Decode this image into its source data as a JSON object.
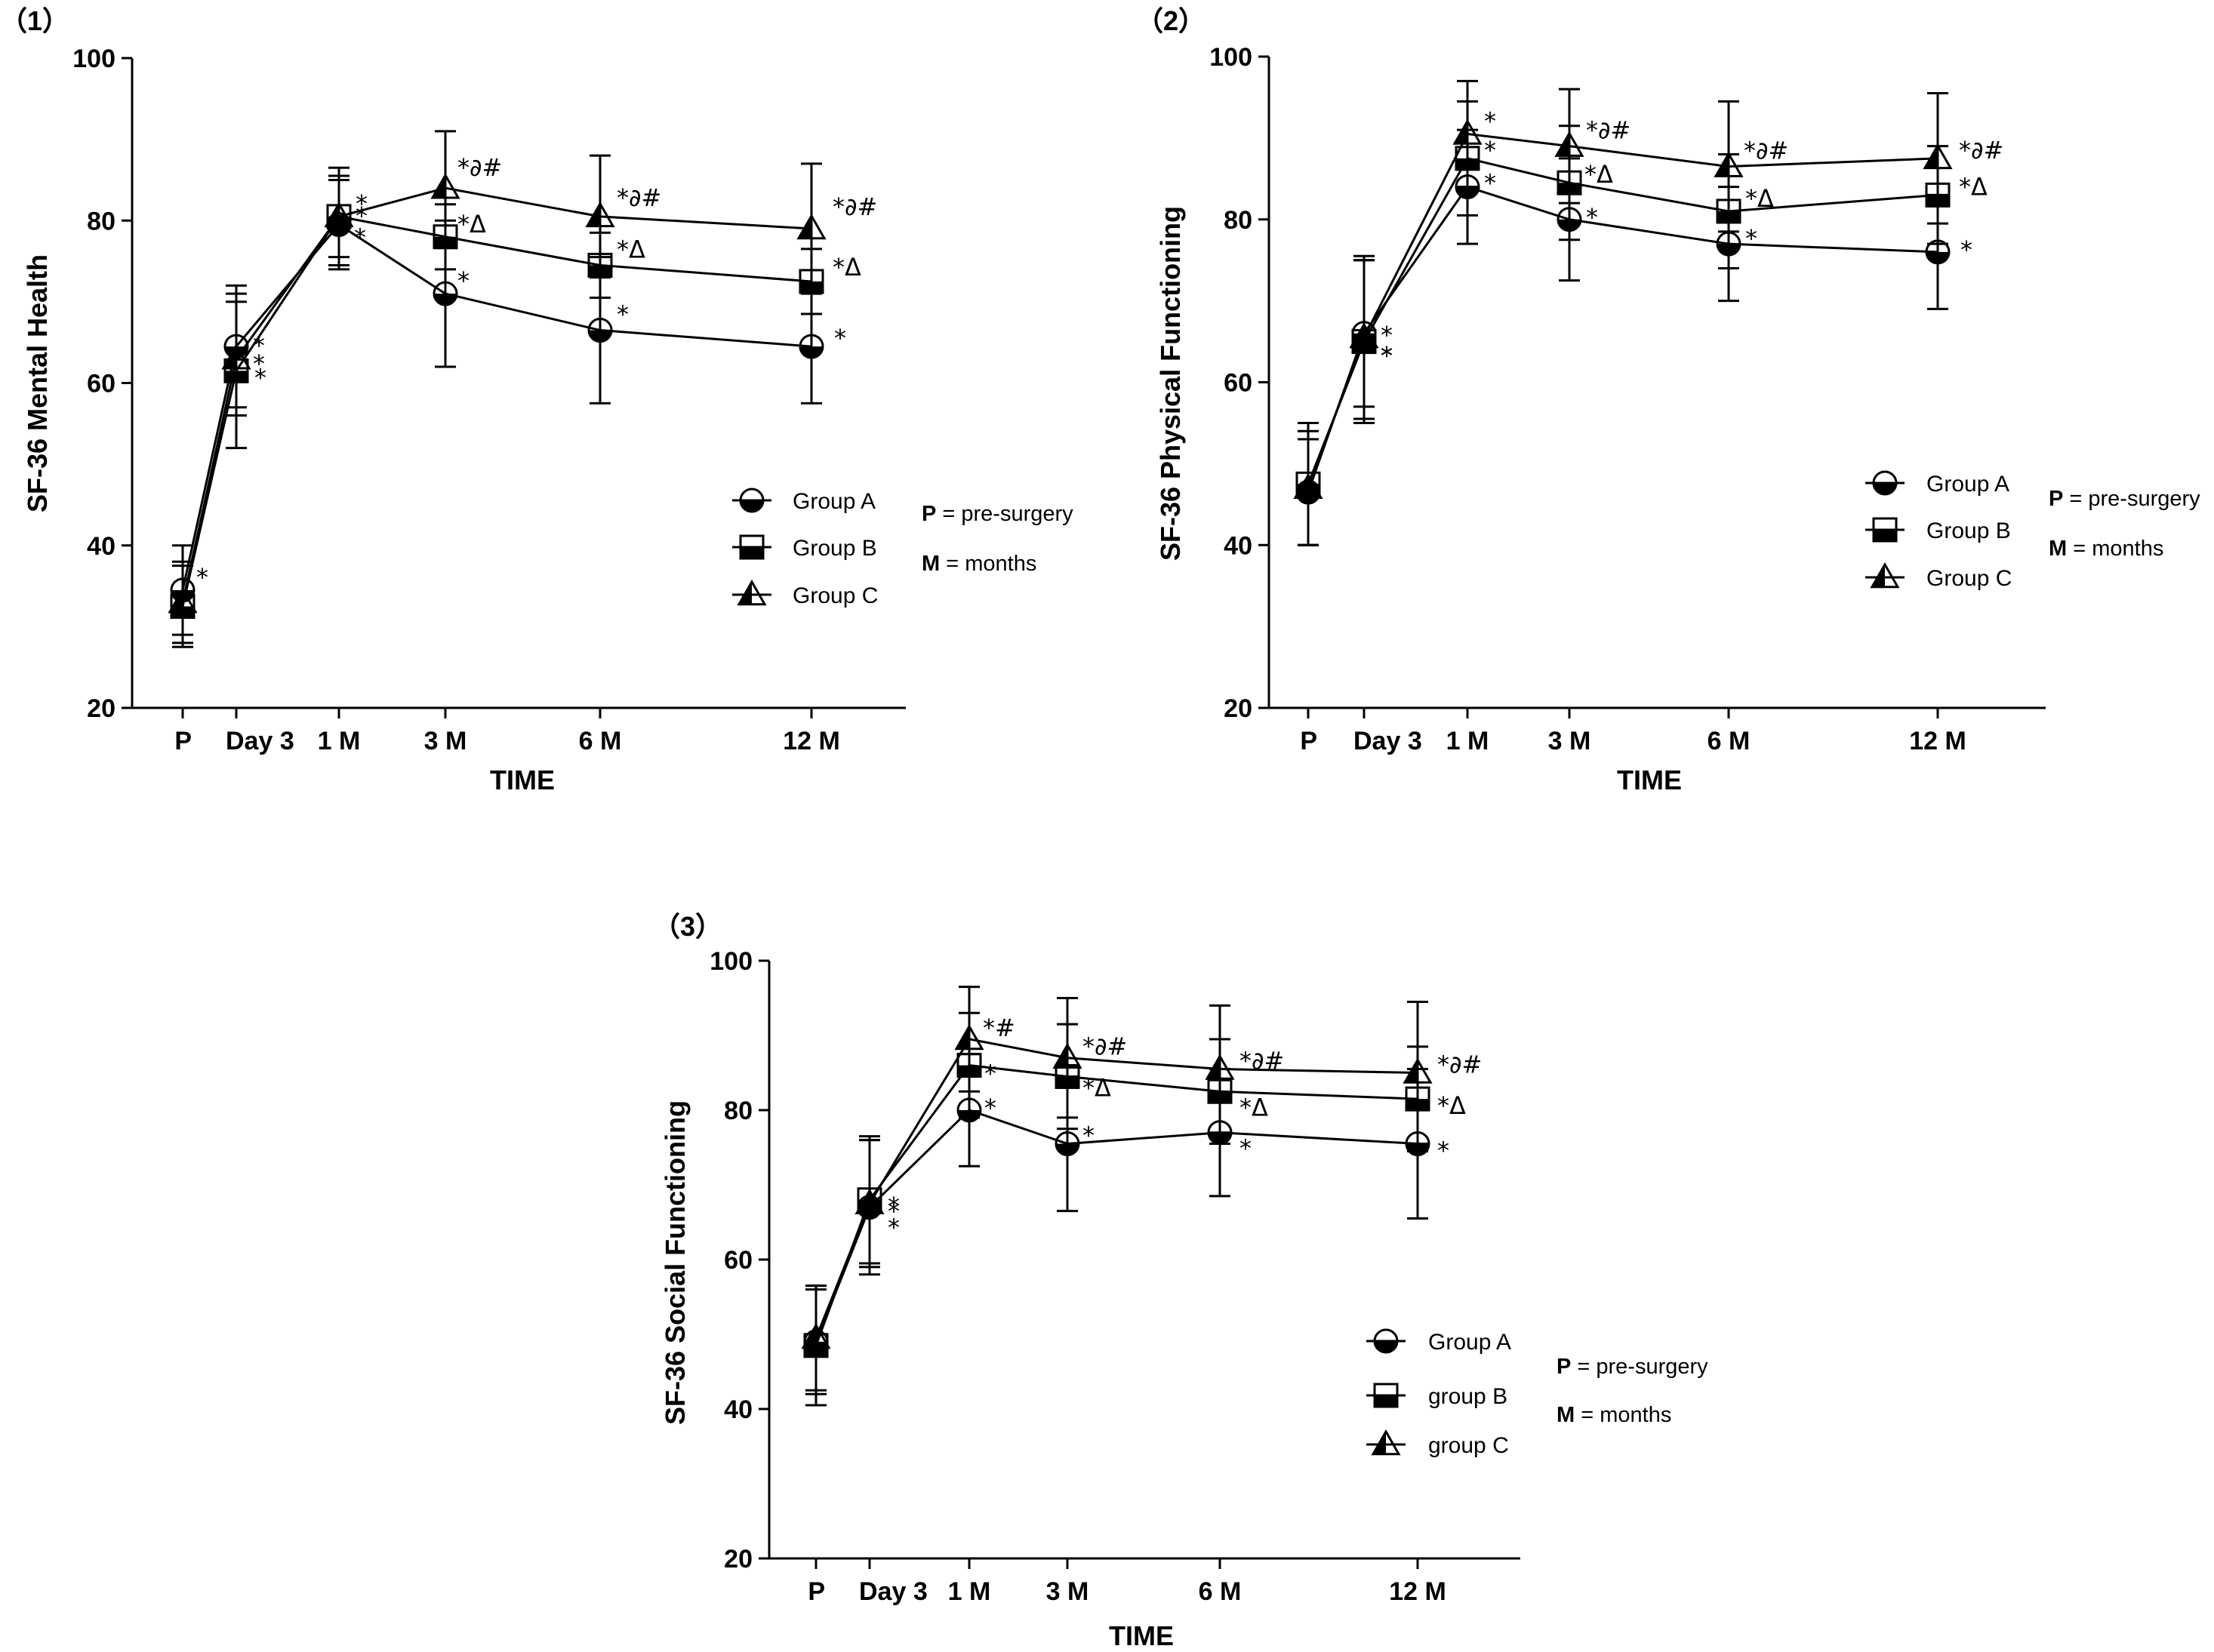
{
  "figure": {
    "legend_defs": {
      "P": "P",
      "P_text": " = pre-surgery",
      "M": "M",
      "M_text": " = months"
    }
  },
  "chart_data": [
    {
      "type": "line",
      "panel_label": "（1）",
      "title": "",
      "xlabel": "TIME",
      "ylabel": "SF-36 Mental Health",
      "categories": [
        "P",
        "Day 3",
        "1 M",
        "3 M",
        "6 M",
        "12 M"
      ],
      "ylim": [
        20,
        100
      ],
      "yticks": [
        20,
        40,
        60,
        80,
        100
      ],
      "grid": false,
      "legend_position": "right",
      "legend_labels": [
        "Group A",
        "Group B",
        "Group C"
      ],
      "series": [
        {
          "name": "Group A",
          "marker": "circle",
          "values": [
            34.5,
            64.5,
            79.5,
            71,
            66.5,
            64.5
          ],
          "err": [
            5.5,
            7.5,
            5.5,
            9,
            9,
            7
          ]
        },
        {
          "name": "Group B",
          "marker": "square",
          "values": [
            32.5,
            61.5,
            80.5,
            78,
            74.5,
            72.5
          ],
          "err": [
            5,
            9.5,
            5,
            4,
            4,
            4
          ]
        },
        {
          "name": "Group C",
          "marker": "triangle",
          "values": [
            33,
            63,
            80.5,
            84,
            80.5,
            79
          ],
          "err": [
            5,
            7,
            6,
            7,
            7.5,
            8
          ]
        }
      ],
      "annotations": [
        [
          "*",
          "*",
          "*",
          "*",
          "*",
          "*"
        ],
        [
          "",
          "*",
          "*",
          "*Δ",
          "*Δ",
          "*Δ"
        ],
        [
          "",
          "*",
          "*",
          "*∂#",
          "*∂#",
          "*∂#"
        ]
      ]
    },
    {
      "type": "line",
      "panel_label": "（2）",
      "title": "",
      "xlabel": "TIME",
      "ylabel": "SF-36 Physical Functioning",
      "categories": [
        "P",
        "Day 3",
        "1 M",
        "3 M",
        "6 M",
        "12 M"
      ],
      "ylim": [
        20,
        100
      ],
      "yticks": [
        20,
        40,
        60,
        80,
        100
      ],
      "grid": false,
      "legend_position": "right",
      "legend_labels": [
        "Group A",
        "Group B",
        "Group C"
      ],
      "series": [
        {
          "name": "Group A",
          "marker": "circle",
          "values": [
            46.5,
            66,
            84,
            80,
            77,
            76
          ],
          "err": [
            6.5,
            9,
            7,
            7.5,
            7,
            7
          ]
        },
        {
          "name": "Group B",
          "marker": "square",
          "values": [
            47.5,
            65,
            87.5,
            84.5,
            81,
            83
          ],
          "err": [
            7.5,
            10,
            7,
            7,
            7,
            6
          ]
        },
        {
          "name": "Group C",
          "marker": "triangle",
          "values": [
            47,
            65.5,
            90.5,
            89,
            86.5,
            87.5
          ],
          "err": [
            7,
            10,
            6.5,
            7,
            8,
            8
          ]
        }
      ],
      "annotations": [
        [
          "",
          "*",
          "*",
          "*",
          "*",
          "*"
        ],
        [
          "",
          "*",
          "*",
          "*Δ",
          "*Δ",
          "*Δ"
        ],
        [
          "",
          "*",
          "*",
          "*∂#",
          "*∂#",
          "*∂#"
        ]
      ]
    },
    {
      "type": "line",
      "panel_label": "（3）",
      "title": "",
      "xlabel": "TIME",
      "ylabel": "SF-36 Social Functioning",
      "categories": [
        "P",
        "Day 3",
        "1 M",
        "3 M",
        "6 M",
        "12 M"
      ],
      "ylim": [
        20,
        100
      ],
      "yticks": [
        20,
        40,
        60,
        80,
        100
      ],
      "grid": false,
      "legend_position": "right",
      "legend_labels": [
        "Group A",
        "group B",
        "group C"
      ],
      "series": [
        {
          "name": "Group A",
          "marker": "circle",
          "values": [
            49,
            67,
            80,
            75.5,
            77,
            75.5
          ],
          "err": [
            7,
            9,
            7.5,
            9,
            8.5,
            10
          ]
        },
        {
          "name": "Group B",
          "marker": "square",
          "values": [
            48.5,
            68,
            86,
            84.5,
            82.5,
            81.5
          ],
          "err": [
            8,
            8.5,
            7,
            7,
            7,
            7
          ]
        },
        {
          "name": "Group C",
          "marker": "triangle",
          "values": [
            49.5,
            67.5,
            89.5,
            87,
            85.5,
            85
          ],
          "err": [
            7,
            8.5,
            7,
            8,
            8.5,
            9.5
          ]
        }
      ],
      "annotations": [
        [
          "",
          "*",
          "*",
          "*",
          "*",
          "*"
        ],
        [
          "",
          "*",
          "*",
          "*Δ",
          "*Δ",
          "*Δ"
        ],
        [
          "",
          "*",
          "*#",
          "*∂#",
          "*∂#",
          "*∂#"
        ]
      ]
    }
  ]
}
